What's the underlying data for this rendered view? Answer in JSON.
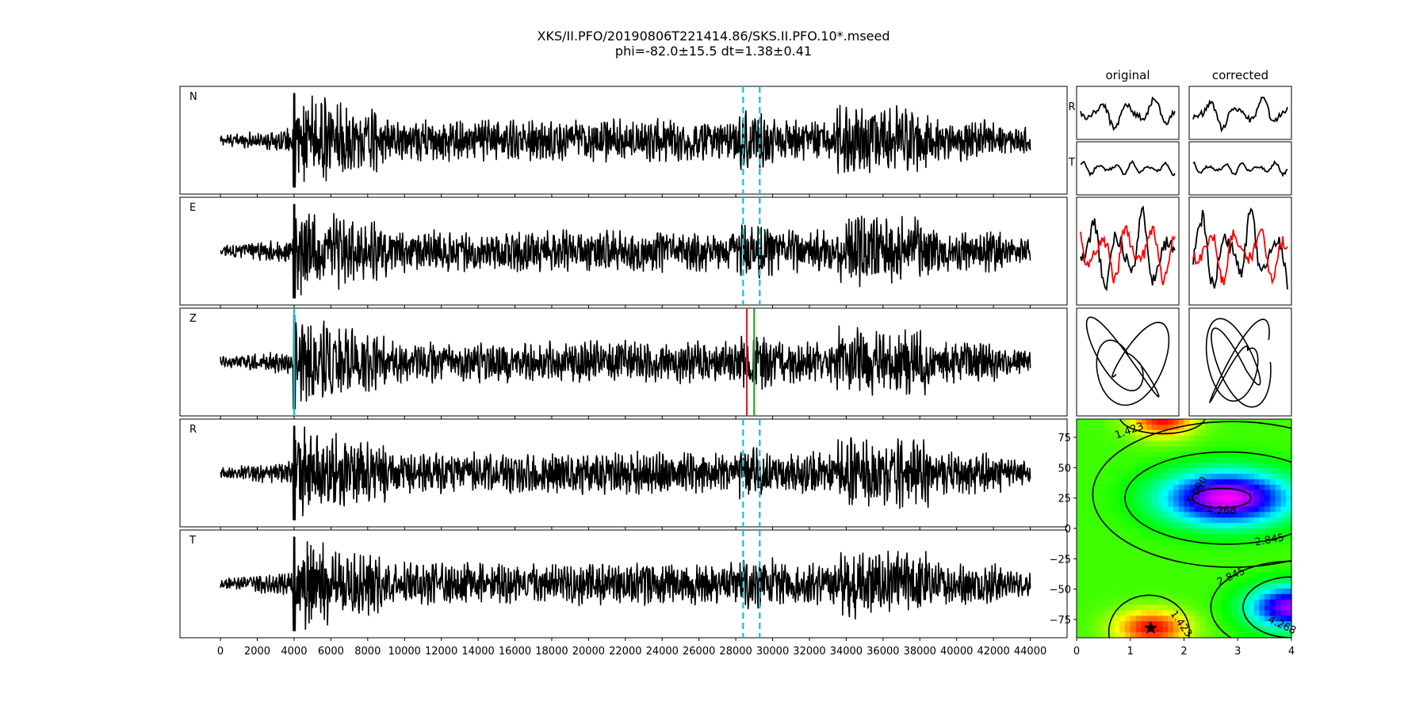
{
  "title": "XKS/II.PFO/20190806T221414.86/SKS.II.PFO.10*.mseed",
  "subtitle": "phi=-82.0±15.5 dt=1.38±0.41",
  "column_titles": {
    "original": "original",
    "corrected": "corrected"
  },
  "colors": {
    "trace": "#000000",
    "window_marker": "#17becf",
    "pick_red": "#d62728",
    "pick_green": "#2ca02c",
    "rt_radial": "#000000",
    "rt_transverse": "#ff0000"
  },
  "chart_data": [
    {
      "type": "line",
      "name": "waveforms",
      "panels": [
        "N",
        "E",
        "Z",
        "R",
        "T"
      ],
      "xlim": [
        -2200,
        46000
      ],
      "x_ticks": [
        0,
        2000,
        4000,
        6000,
        8000,
        10000,
        12000,
        14000,
        16000,
        18000,
        20000,
        22000,
        24000,
        26000,
        28000,
        30000,
        32000,
        34000,
        36000,
        38000,
        40000,
        42000,
        44000
      ],
      "x_range_of_data": [
        0,
        44000
      ],
      "first_arrival_x": 4000,
      "window_markers_x": [
        28400,
        29300
      ],
      "z_pick_markers": [
        {
          "x": 28600,
          "color": "red"
        },
        {
          "x": 29000,
          "color": "green"
        },
        {
          "x": 4000,
          "color": "cyan"
        }
      ]
    },
    {
      "type": "line",
      "name": "particle-motion",
      "columns": [
        "original",
        "corrected"
      ],
      "row_labels": [
        "R",
        "T"
      ]
    },
    {
      "type": "heatmap",
      "name": "error-surface",
      "xlim": [
        0,
        4
      ],
      "ylim": [
        -90,
        90
      ],
      "x_ticks": [
        0,
        1,
        2,
        3,
        4
      ],
      "y_ticks": [
        75,
        50,
        25,
        0,
        -25,
        -50,
        -75
      ],
      "contour_labels": [
        "1.423",
        "5.690",
        "4.268",
        "2.845",
        "2.845",
        "1.423",
        "4.268"
      ],
      "best_fit": {
        "dt": 1.38,
        "phi": -82.0
      }
    }
  ]
}
